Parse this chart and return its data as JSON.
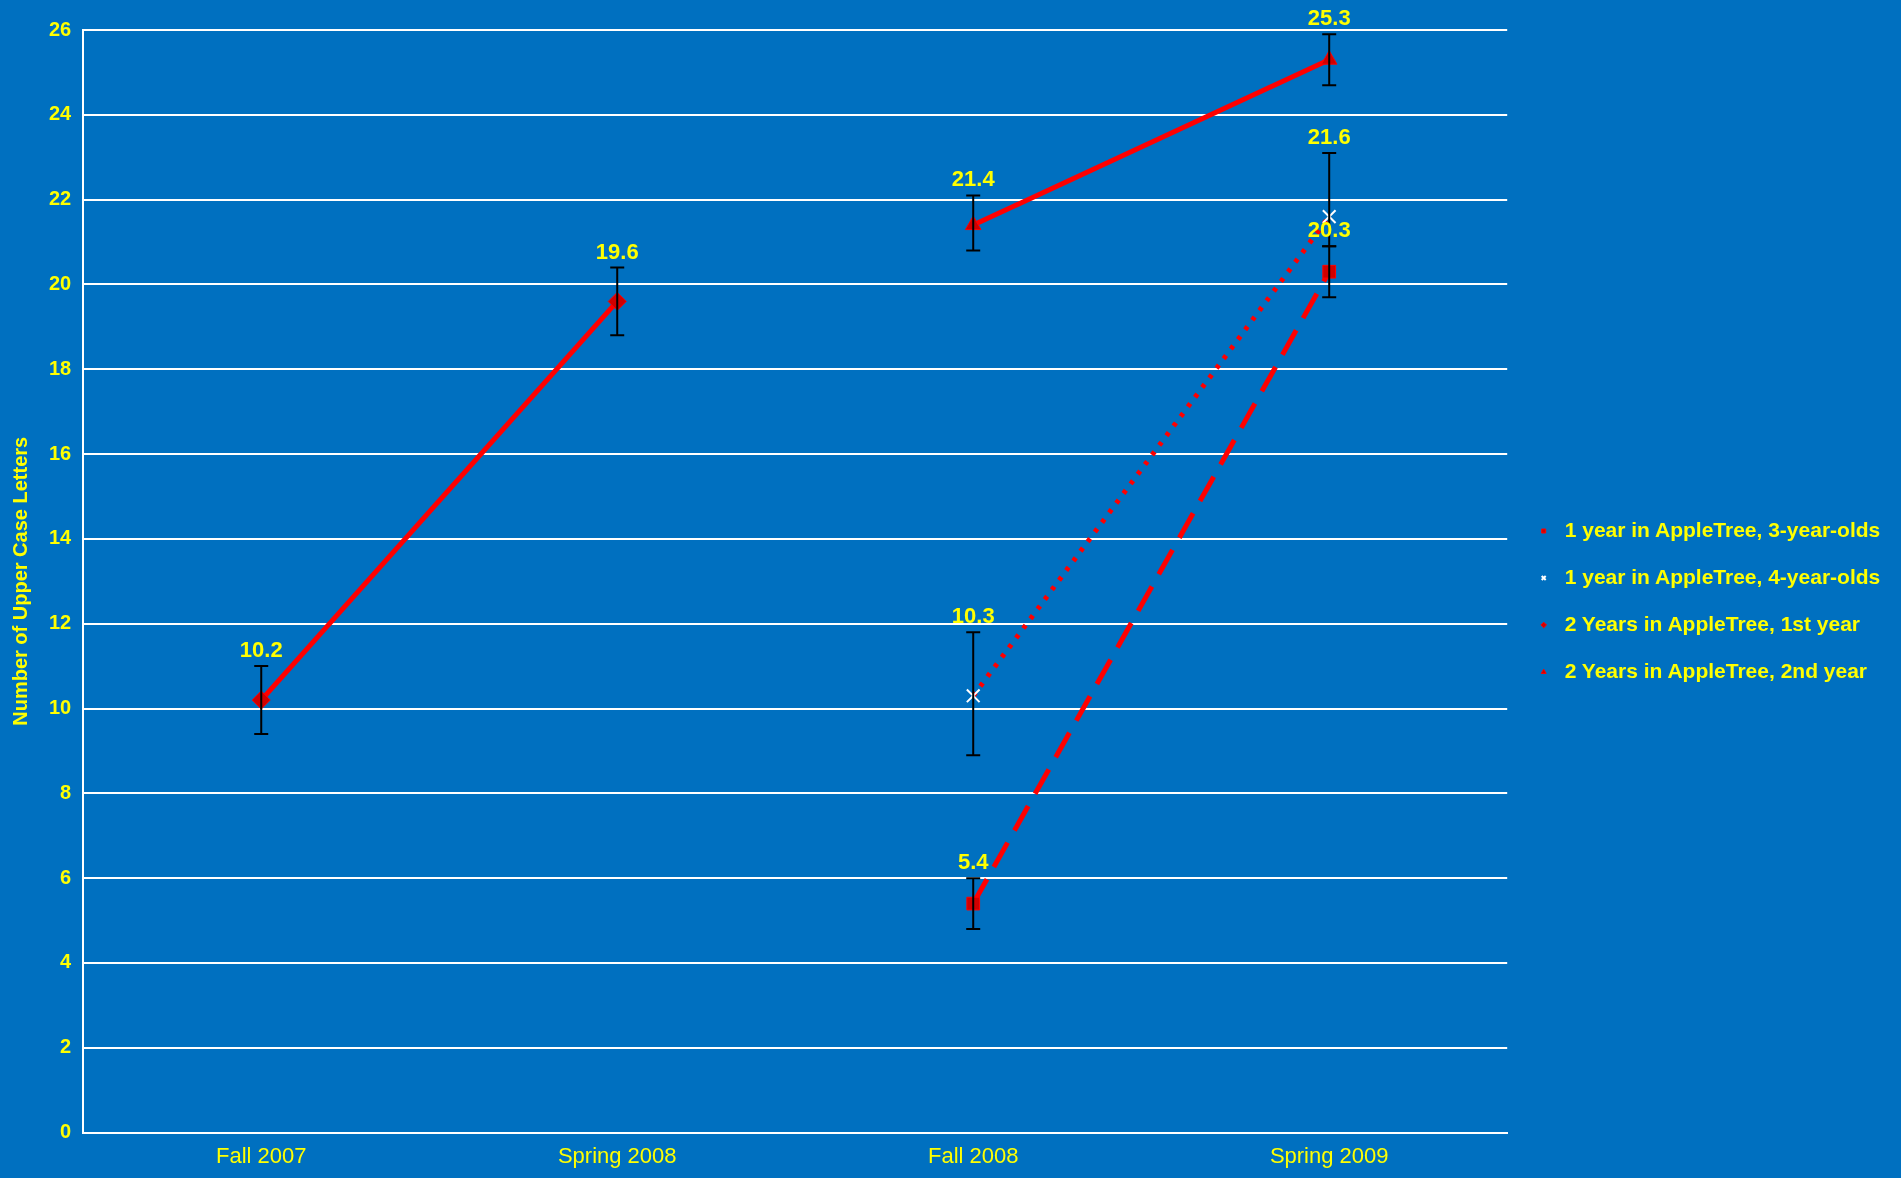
{
  "chart_data": {
    "type": "line",
    "ylabel": "Number of Upper Case Letters",
    "categories": [
      "Fall 2007",
      "Spring 2008",
      "Fall 2008",
      "Spring 2009"
    ],
    "ylim": [
      0,
      26
    ],
    "yticks": [
      0,
      2,
      4,
      6,
      8,
      10,
      12,
      14,
      16,
      18,
      20,
      22,
      24,
      26
    ],
    "grid": "y",
    "legend": "right",
    "data_labels": true,
    "series": [
      {
        "name": "1 year in AppleTree, 3-year-olds",
        "color": "#ff0000",
        "line_style": "dashed",
        "marker": "square",
        "values": [
          null,
          null,
          5.4,
          20.3
        ],
        "errors": [
          null,
          null,
          [
            4.8,
            6.0
          ],
          [
            19.7,
            20.9
          ]
        ]
      },
      {
        "name": "1 year in AppleTree, 4-year-olds",
        "color": "#ff0000",
        "line_style": "dotted",
        "marker": "cross",
        "values": [
          null,
          null,
          10.3,
          21.6
        ],
        "errors": [
          null,
          null,
          [
            8.9,
            11.8
          ],
          [
            20.9,
            23.1
          ]
        ]
      },
      {
        "name": "2 Years in AppleTree, 1st year",
        "color": "#ff0000",
        "line_style": "solid",
        "marker": "diamond",
        "values": [
          10.2,
          19.6,
          null,
          null
        ],
        "errors": [
          [
            9.4,
            11.0
          ],
          [
            18.8,
            20.4
          ],
          null,
          null
        ]
      },
      {
        "name": "2 Years in AppleTree, 2nd year",
        "color": "#ff0000",
        "line_style": "solid",
        "marker": "triangle",
        "values": [
          null,
          null,
          21.4,
          25.3
        ],
        "errors": [
          null,
          null,
          [
            20.8,
            22.1
          ],
          [
            24.7,
            25.9
          ]
        ]
      }
    ]
  }
}
